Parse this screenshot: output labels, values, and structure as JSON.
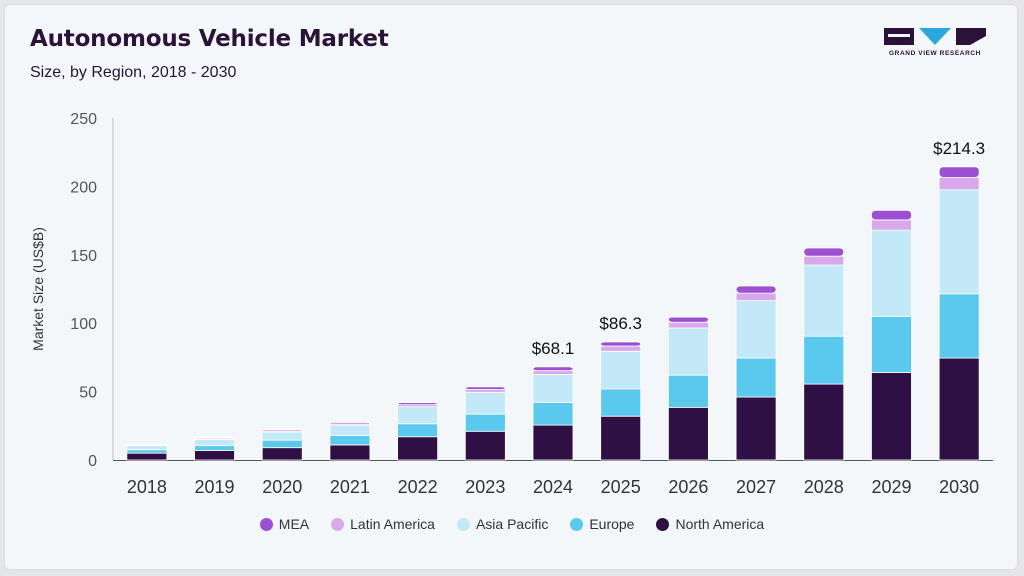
{
  "header": {
    "title": "Autonomous Vehicle Market",
    "subtitle": "Size, by Region, 2018 - 2030"
  },
  "logo": {
    "text": "GRAND VIEW RESEARCH"
  },
  "chart_data": {
    "type": "bar",
    "stacked": true,
    "categories": [
      "2018",
      "2019",
      "2020",
      "2021",
      "2022",
      "2023",
      "2024",
      "2025",
      "2026",
      "2027",
      "2028",
      "2029",
      "2030"
    ],
    "ylabel": "Market Size (US$B)",
    "xlabel": "",
    "ylim": [
      0,
      250
    ],
    "yticks": [
      0,
      50,
      100,
      150,
      200,
      250
    ],
    "grid": false,
    "legend_position": "bottom",
    "series": [
      {
        "name": "North America",
        "color": "#2e1044",
        "values": [
          5,
          7,
          9,
          11,
          17,
          21,
          25.5,
          32,
          38.5,
          46,
          55.5,
          64,
          74.5
        ]
      },
      {
        "name": "Europe",
        "color": "#5bc8ee",
        "values": [
          2.5,
          3.5,
          5.5,
          7,
          9.5,
          12.5,
          16.5,
          20,
          23.5,
          28.5,
          35,
          41,
          47
        ]
      },
      {
        "name": "Asia Pacific",
        "color": "#c3e8f8",
        "values": [
          3,
          4.5,
          6,
          7.5,
          12.5,
          16,
          20.5,
          27.5,
          34.5,
          42,
          52,
          63,
          76
        ]
      },
      {
        "name": "Latin America",
        "color": "#d7a8ec",
        "values": [
          0.5,
          0.7,
          0.8,
          0.9,
          1.5,
          2,
          2.8,
          3.8,
          4.2,
          5.5,
          6.5,
          7.5,
          9
        ]
      },
      {
        "name": "MEA",
        "color": "#9b4fd1",
        "values": [
          0.5,
          0.7,
          0.8,
          1,
          1.5,
          2,
          2.8,
          3,
          3.8,
          5.2,
          6,
          7,
          7.8
        ]
      }
    ],
    "annotations": [
      {
        "category": "2024",
        "label": "$68.1",
        "value": 68.1
      },
      {
        "category": "2025",
        "label": "$86.3",
        "value": 86.3
      },
      {
        "category": "2030",
        "label": "$214.3",
        "value": 214.3
      }
    ]
  }
}
